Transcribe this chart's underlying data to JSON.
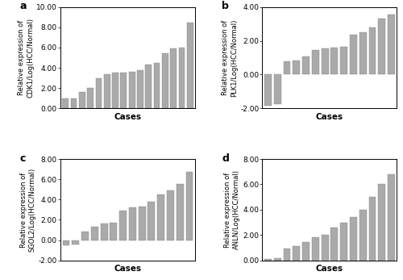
{
  "CDK1": [
    0.95,
    1.0,
    1.6,
    2.0,
    2.95,
    3.35,
    3.5,
    3.55,
    3.6,
    3.8,
    4.3,
    4.45,
    5.4,
    5.95,
    6.0,
    8.45
  ],
  "PLK1": [
    -1.85,
    -1.75,
    0.8,
    0.85,
    1.05,
    1.45,
    1.55,
    1.6,
    1.65,
    2.35,
    2.5,
    2.8,
    3.3,
    3.55
  ],
  "SGOL2": [
    -0.55,
    -0.4,
    0.85,
    1.3,
    1.6,
    1.75,
    2.9,
    3.2,
    3.3,
    3.8,
    4.5,
    4.9,
    5.5,
    6.7
  ],
  "ANLN": [
    0.1,
    0.15,
    0.95,
    1.1,
    1.45,
    1.8,
    2.0,
    2.6,
    3.0,
    3.4,
    4.0,
    5.0,
    6.0,
    6.8
  ],
  "CDK1_ylim": [
    0.0,
    10.0
  ],
  "CDK1_yticks": [
    0.0,
    2.0,
    4.0,
    6.0,
    8.0,
    10.0
  ],
  "PLK1_ylim": [
    -2.0,
    4.0
  ],
  "PLK1_yticks": [
    -2.0,
    0.0,
    2.0,
    4.0
  ],
  "SGOL2_ylim": [
    -2.0,
    8.0
  ],
  "SGOL2_yticks": [
    -2.0,
    0.0,
    2.0,
    4.0,
    6.0,
    8.0
  ],
  "ANLN_ylim": [
    0.0,
    8.0
  ],
  "ANLN_yticks": [
    0.0,
    2.0,
    4.0,
    6.0,
    8.0
  ],
  "bar_color": "#aaaaaa",
  "bar_edge_color": "#888888",
  "bg_color": "#ffffff",
  "labels": {
    "a": "Relative expression of\nCDK1/Log(HCC/Normal)",
    "b": "Relative expression of\nPLK1/Log(HCC/Normal)",
    "c": "Relative expression of\nSGOL2/Log(HCC/Normal)",
    "d": "Relative expression of\nANLN/Log(HCC/Normal)"
  },
  "xlabel": "Cases",
  "tick_fontsize": 6.5,
  "label_fontsize": 6.0,
  "xlabel_fontsize": 7.5,
  "panel_label_fontsize": 9
}
